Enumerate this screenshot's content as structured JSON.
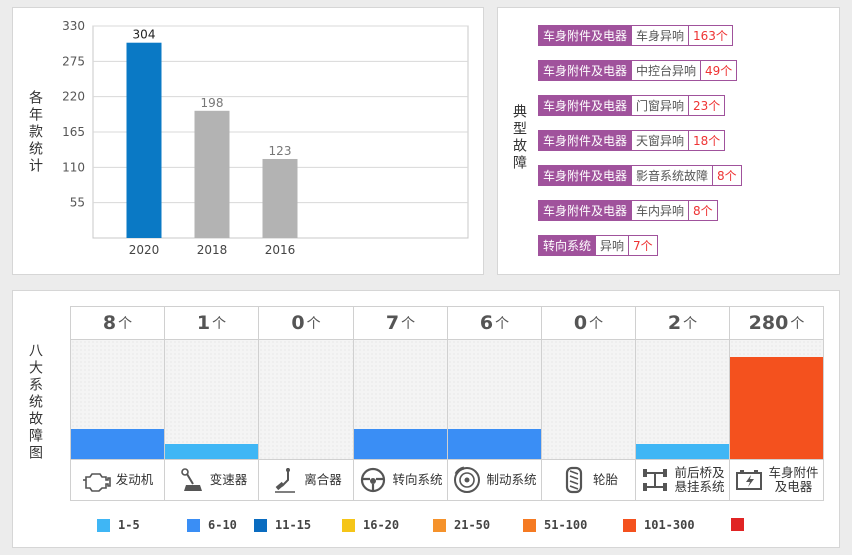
{
  "year_panel": {
    "side_label": "各年款统计",
    "chart_data": {
      "type": "bar",
      "categories": [
        "2020",
        "2018",
        "2016"
      ],
      "values": [
        304,
        198,
        123
      ],
      "bar_colors": [
        "#0a79c5",
        "#b3b3b3",
        "#b3b3b3"
      ],
      "label_colors": [
        "#222222",
        "#777777",
        "#777777"
      ],
      "yticks": [
        "330",
        "275",
        "220",
        "165",
        "110",
        "55"
      ],
      "ylim": [
        0,
        330
      ],
      "grid": true
    }
  },
  "fault_panel": {
    "side_label": "典型故障",
    "items": [
      {
        "system": "车身附件及电器",
        "item": "车身异响",
        "count": "163个"
      },
      {
        "system": "车身附件及电器",
        "item": "中控台异响",
        "count": "49个"
      },
      {
        "system": "车身附件及电器",
        "item": "门窗异响",
        "count": "23个"
      },
      {
        "system": "车身附件及电器",
        "item": "天窗异响",
        "count": "18个"
      },
      {
        "system": "车身附件及电器",
        "item": "影音系统故障",
        "count": "8个"
      },
      {
        "system": "车身附件及电器",
        "item": "车内异响",
        "count": "8个"
      },
      {
        "system": "转向系统",
        "item": "异响",
        "count": "7个"
      }
    ]
  },
  "systems_panel": {
    "side_label": "八大系统故障图",
    "unit": "个",
    "systems": [
      {
        "name": "发动机",
        "count": "8",
        "value": 8,
        "icon": "engine-icon",
        "color": "#3a8ef5"
      },
      {
        "name": "变速器",
        "count": "1",
        "value": 1,
        "icon": "gear-shifter-icon",
        "color": "#3fb6f5"
      },
      {
        "name": "离合器",
        "count": "0",
        "value": 0,
        "icon": "clutch-pedal-icon",
        "color": ""
      },
      {
        "name": "转向系统",
        "count": "7",
        "value": 7,
        "icon": "steering-wheel-icon",
        "color": "#3a8ef5"
      },
      {
        "name": "制动系统",
        "count": "6",
        "value": 6,
        "icon": "brake-disc-icon",
        "color": "#3a8ef5"
      },
      {
        "name": "轮胎",
        "count": "0",
        "value": 0,
        "icon": "tire-icon",
        "color": ""
      },
      {
        "name": "前后桥及悬挂系统",
        "name_line1": "前后桥及",
        "name_line2": "悬挂系统",
        "count": "2",
        "value": 2,
        "icon": "axle-suspension-icon",
        "color": "#3fb6f5"
      },
      {
        "name": "车身附件及电器",
        "name_line1": "车身附件",
        "name_line2": "及电器",
        "count": "280",
        "value": 280,
        "icon": "battery-icon",
        "color": "#f4511e"
      }
    ],
    "legend": [
      {
        "label": "1-5",
        "color": "#3fb6f5"
      },
      {
        "label": "6-10",
        "color": "#3a8ef5"
      },
      {
        "label": "11-15",
        "color": "#0a6cc0"
      },
      {
        "label": "16-20",
        "color": "#f5c518"
      },
      {
        "label": "21-50",
        "color": "#f5922b"
      },
      {
        "label": "51-100",
        "color": "#f57a22"
      },
      {
        "label": "101-300",
        "color": "#f4511e"
      },
      {
        "label": "",
        "color": "#e02424"
      }
    ]
  }
}
